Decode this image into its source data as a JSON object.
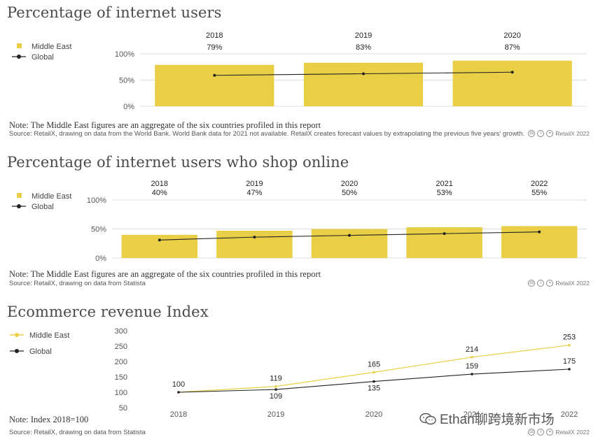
{
  "colors": {
    "middle_east": "#e8cf45",
    "global": "#222222",
    "grid": "#dddddd",
    "axis_text": "#555555"
  },
  "brand": {
    "license_icons": [
      "cc-icon",
      "by-icon",
      "nd-icon"
    ],
    "label": "RetailX 2022"
  },
  "watermark": {
    "text": "Ethan聊跨境新市场",
    "icon": "wechat-icon"
  },
  "chart_data": [
    {
      "type": "bar",
      "title": "Percentage of internet users",
      "categories": [
        "2018",
        "2019",
        "2020"
      ],
      "series": [
        {
          "name": "Middle East",
          "kind": "bar",
          "values": [
            79,
            83,
            87
          ],
          "labels": [
            "79%",
            "83%",
            "87%"
          ]
        },
        {
          "name": "Global",
          "kind": "line",
          "values": [
            59,
            62,
            65
          ]
        }
      ],
      "yticks": [
        "0%",
        "50%",
        "100%"
      ],
      "ylim": [
        0,
        100
      ],
      "grid": true,
      "legend_position": "top-left",
      "note": "Note: The Middle East figures are an aggregate of the six countries profiled in this report",
      "source": "Source: RetailX, drawing on data from the World Bank. World Bank data for 2021 not available. RetailX creates forecast values by extrapolating the previous five years' growth."
    },
    {
      "type": "bar",
      "title": "Percentage of internet users who shop online",
      "categories": [
        "2018",
        "2019",
        "2020",
        "2021",
        "2022"
      ],
      "series": [
        {
          "name": "Middle East",
          "kind": "bar",
          "values": [
            40,
            47,
            50,
            53,
            55
          ],
          "labels": [
            "40%",
            "47%",
            "50%",
            "53%",
            "55%"
          ]
        },
        {
          "name": "Global",
          "kind": "line",
          "values": [
            31,
            36,
            39,
            42,
            45
          ]
        }
      ],
      "yticks": [
        "0%",
        "50%",
        "100%"
      ],
      "ylim": [
        0,
        100
      ],
      "grid": true,
      "legend_position": "top-left",
      "note": "Note: The Middle East figures are an aggregate of the six countries profiled in this report",
      "source": "Source: RetailX, drawing on data from Statista"
    },
    {
      "type": "line",
      "title": "Ecommerce revenue Index",
      "categories": [
        "2018",
        "2019",
        "2020",
        "2021",
        "2022"
      ],
      "series": [
        {
          "name": "Middle East",
          "values": [
            100,
            119,
            165,
            214,
            253
          ],
          "labels": [
            "100",
            "119",
            "165",
            "214",
            "253"
          ]
        },
        {
          "name": "Global",
          "values": [
            100,
            109,
            135,
            159,
            175
          ],
          "labels": [
            "",
            "109",
            "135",
            "159",
            "175"
          ]
        }
      ],
      "yticks": [
        "50",
        "100",
        "150",
        "200",
        "250",
        "300"
      ],
      "ylim": [
        50,
        300
      ],
      "grid": false,
      "legend_position": "top-left",
      "note": "Note: Index 2018=100",
      "source": "Source: RetailX, drawing on data from Statista"
    }
  ]
}
